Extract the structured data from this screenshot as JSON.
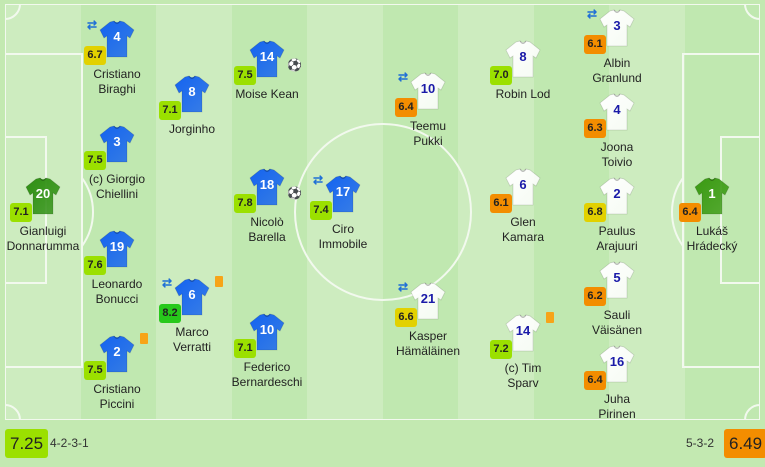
{
  "colors": {
    "pitch_light": "#cdecbf",
    "pitch_dark": "#c0e8b0",
    "lines": "#f2f9ee",
    "home_shirt": "#1463f0",
    "home_gk_shirt": "#2e8f12",
    "away_shirt": "#ffffff",
    "away_number": "#1a1aa8",
    "away_gk_shirt": "#3a9a12",
    "rating_excellent": "#27c91b",
    "rating_good": "#9be000",
    "rating_average": "#e2d100",
    "rating_poor": "#f38d00"
  },
  "home": {
    "team_rating": "7.25",
    "formation": "4-2-3-1",
    "players": [
      {
        "number": "20",
        "name": "Gianluigi Donnarumma",
        "rating": "7.1",
        "gk": true
      },
      {
        "number": "4",
        "name": "Cristiano Biraghi",
        "rating": "6.7",
        "sub": true
      },
      {
        "number": "3",
        "name": "(c) Giorgio Chiellini",
        "rating": "7.5"
      },
      {
        "number": "19",
        "name": "Leonardo Bonucci",
        "rating": "7.6"
      },
      {
        "number": "2",
        "name": "Cristiano Piccini",
        "rating": "7.5",
        "yellow_card": true
      },
      {
        "number": "8",
        "name": "Jorginho",
        "rating": "7.1"
      },
      {
        "number": "6",
        "name": "Marco Verratti",
        "rating": "8.2",
        "sub": true,
        "yellow_card": true
      },
      {
        "number": "14",
        "name": "Moise Kean",
        "rating": "7.5",
        "goal": true
      },
      {
        "number": "18",
        "name": "Nicolò Barella",
        "rating": "7.8",
        "goal": true
      },
      {
        "number": "10",
        "name": "Federico Bernardeschi",
        "rating": "7.1"
      },
      {
        "number": "17",
        "name": "Ciro Immobile",
        "rating": "7.4",
        "sub": true
      }
    ]
  },
  "away": {
    "team_rating": "6.49",
    "formation": "5-3-2",
    "players": [
      {
        "number": "10",
        "name": "Teemu Pukki",
        "rating": "6.4",
        "sub": true
      },
      {
        "number": "21",
        "name": "Kasper Hämäläinen",
        "rating": "6.6",
        "sub": true
      },
      {
        "number": "8",
        "name": "Robin Lod",
        "rating": "7.0"
      },
      {
        "number": "6",
        "name": "Glen Kamara",
        "rating": "6.1"
      },
      {
        "number": "14",
        "name": "(c) Tim Sparv",
        "rating": "7.2",
        "yellow_card": true
      },
      {
        "number": "3",
        "name": "Albin Granlund",
        "rating": "6.1",
        "sub": true
      },
      {
        "number": "4",
        "name": "Joona Toivio",
        "rating": "6.3"
      },
      {
        "number": "2",
        "name": "Paulus Arajuuri",
        "rating": "6.8"
      },
      {
        "number": "5",
        "name": "Sauli Väisänen",
        "rating": "6.2"
      },
      {
        "number": "16",
        "name": "Juha Pirinen",
        "rating": "6.4"
      },
      {
        "number": "1",
        "name": "Lukáš Hrádecký",
        "rating": "6.4",
        "gk": true
      }
    ]
  },
  "icons": {
    "substitution": "swap-arrows-icon",
    "goal": "soccer-ball-icon",
    "yellow_card": "yellow-card-icon"
  }
}
